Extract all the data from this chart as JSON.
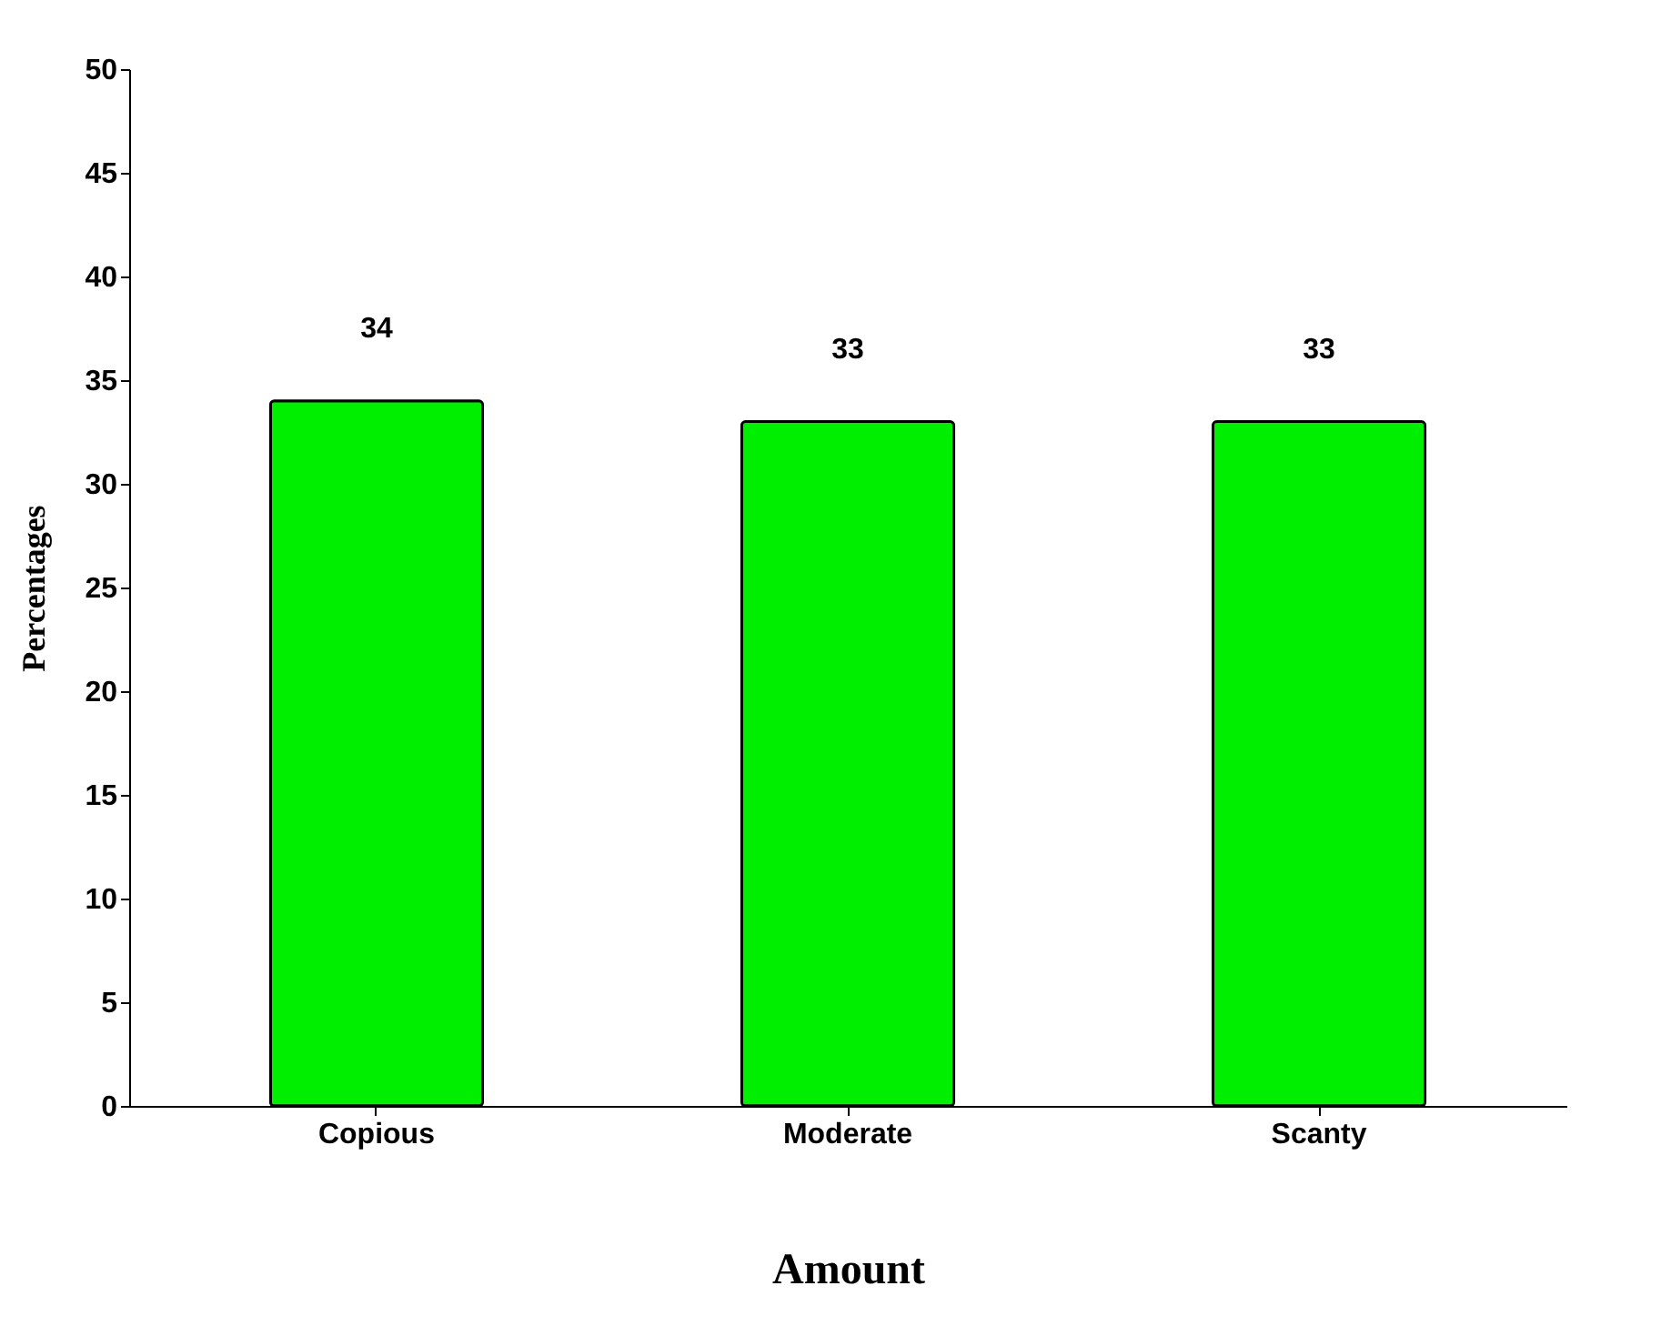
{
  "chart_data": {
    "type": "bar",
    "xlabel": "Amount",
    "ylabel": "Percentages",
    "categories": [
      "Copious",
      "Moderate",
      "Scanty"
    ],
    "values": [
      34,
      33,
      33
    ],
    "color": "#00ee00",
    "ylim": [
      0,
      50
    ],
    "yticks": [
      0,
      5,
      10,
      15,
      20,
      25,
      30,
      35,
      40,
      45,
      50
    ],
    "grid": false,
    "data_labels": true
  }
}
